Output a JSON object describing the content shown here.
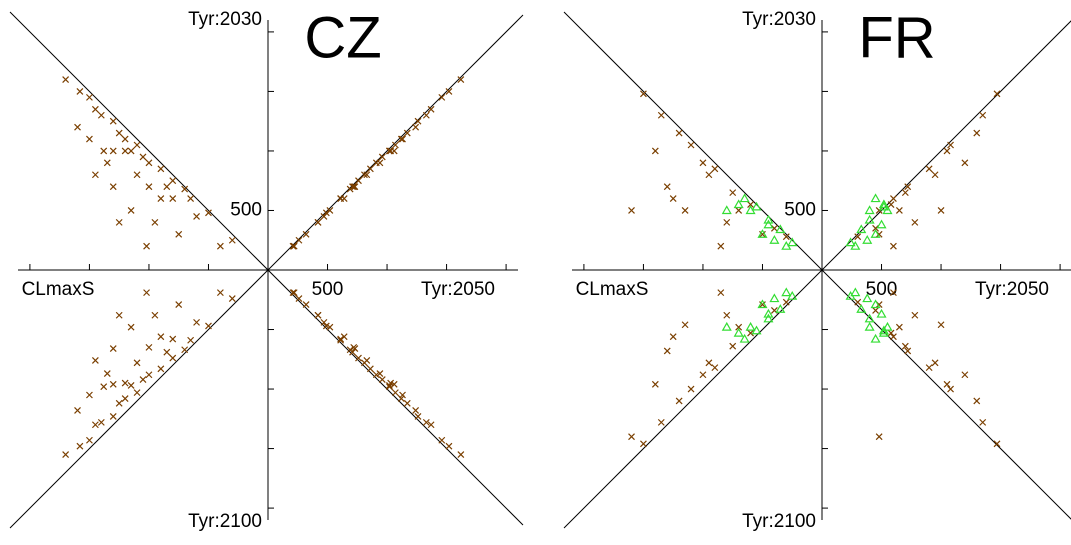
{
  "chart_data": [
    {
      "type": "scatter",
      "title": "CZ",
      "axes": [
        {
          "label": "CLmaxS",
          "dir": "left",
          "lim": [
            0,
            2100
          ],
          "ticks": [
            500,
            1000,
            1500,
            2000
          ],
          "tick_labels": []
        },
        {
          "label": "Tyr:2030",
          "dir": "up",
          "lim": [
            0,
            2100
          ],
          "ticks": [
            500,
            1000,
            1500,
            2000
          ],
          "tick_labels": [
            500
          ]
        },
        {
          "label": "Tyr:2050",
          "dir": "right",
          "lim": [
            0,
            2100
          ],
          "ticks": [
            500,
            1000,
            1500,
            2000
          ],
          "tick_labels": [
            500
          ]
        },
        {
          "label": "Tyr:2100",
          "dir": "down",
          "lim": [
            0,
            2100
          ],
          "ticks": [
            500,
            1000,
            1500,
            2000
          ],
          "tick_labels": []
        }
      ],
      "series": [
        {
          "color": "#7a3f00",
          "marker": "x",
          "sites": [
            [
              1580,
              1500,
              1520,
              1480
            ],
            [
              1400,
              1300,
              1330,
              1280
            ],
            [
              1500,
              1100,
              1130,
              1050
            ],
            [
              1300,
              1250,
              1260,
              1230
            ],
            [
              1200,
              1000,
              1030,
              950
            ],
            [
              1100,
              1050,
              1070,
              1030
            ],
            [
              1000,
              700,
              720,
              650
            ],
            [
              900,
              850,
              860,
              830
            ],
            [
              1350,
              900,
              940,
              870
            ],
            [
              1250,
              1150,
              1170,
              1120
            ],
            [
              800,
              600,
              610,
              580
            ],
            [
              1450,
              800,
              830,
              760
            ],
            [
              700,
              680,
              690,
              670
            ],
            [
              1150,
              500,
              520,
              480
            ],
            [
              950,
              400,
              420,
              380
            ],
            [
              1050,
              950,
              960,
              920
            ],
            [
              600,
              450,
              470,
              440
            ],
            [
              1600,
              1200,
              1240,
              1180
            ],
            [
              850,
              700,
              710,
              690
            ],
            [
              1380,
              1000,
              1020,
              980
            ],
            [
              500,
              480,
              490,
              470
            ],
            [
              750,
              300,
              320,
              290
            ],
            [
              1200,
              1100,
              1120,
              1080
            ],
            [
              1000,
              900,
              910,
              880
            ],
            [
              1300,
              700,
              730,
              660
            ],
            [
              650,
              600,
              610,
              590
            ],
            [
              1100,
              800,
              810,
              780
            ],
            [
              400,
              200,
              210,
              190
            ],
            [
              1500,
              1450,
              1460,
              1430
            ],
            [
              1700,
              1600,
              1620,
              1550
            ],
            [
              900,
              600,
              640,
              560
            ],
            [
              1250,
              400,
              420,
              380
            ],
            [
              300,
              250,
              260,
              240
            ],
            [
              1150,
              1000,
              1020,
              970
            ],
            [
              1450,
              1350,
              1370,
              1300
            ],
            [
              800,
              750,
              760,
              740
            ],
            [
              1020,
              200,
              220,
              190
            ],
            [
              1300,
              1000,
              1060,
              960
            ]
          ]
        }
      ]
    },
    {
      "type": "scatter",
      "title": "FR",
      "axes": [
        {
          "label": "CLmaxS",
          "dir": "left",
          "lim": [
            0,
            2100
          ],
          "ticks": [
            500,
            1000,
            1500,
            2000
          ],
          "tick_labels": []
        },
        {
          "label": "Tyr:2030",
          "dir": "up",
          "lim": [
            0,
            2100
          ],
          "ticks": [
            500,
            1000,
            1500,
            2000
          ],
          "tick_labels": [
            500
          ]
        },
        {
          "label": "Tyr:2050",
          "dir": "right",
          "lim": [
            0,
            2100
          ],
          "ticks": [
            500,
            1000,
            1500,
            2000
          ],
          "tick_labels": [
            500
          ]
        },
        {
          "label": "Tyr:2100",
          "dir": "down",
          "lim": [
            0,
            2100
          ],
          "ticks": [
            500,
            1000,
            1500,
            2000
          ],
          "tick_labels": []
        }
      ],
      "series": [
        {
          "color": "#7a3f00",
          "marker": "x",
          "sites": [
            [
              1500,
              1480,
              1470,
              1460
            ],
            [
              1200,
              1150,
              1300,
              1100
            ],
            [
              1300,
              700,
              720,
              680
            ],
            [
              900,
              850,
              900,
              820
            ],
            [
              1100,
              1050,
              1080,
              1000
            ],
            [
              700,
              500,
              650,
              480
            ],
            [
              800,
              400,
              780,
              380
            ],
            [
              1250,
              600,
              600,
              560
            ],
            [
              600,
              550,
              580,
              530
            ],
            [
              1000,
              900,
              1200,
              880
            ],
            [
              400,
              350,
              450,
              340
            ],
            [
              1600,
              500,
              480,
              1400
            ],
            [
              300,
              280,
              300,
              270
            ],
            [
              950,
              800,
              950,
              780
            ],
            [
              1150,
              500,
              1000,
              460
            ],
            [
              500,
              300,
              480,
              290
            ],
            [
              750,
              650,
              700,
              640
            ],
            [
              1400,
              1000,
              1050,
              960
            ],
            [
              850,
              200,
              600,
              190
            ],
            [
              1350,
              1300,
              1350,
              1280
            ]
          ]
        },
        {
          "color": "#33dd33",
          "marker": "triangle",
          "sites": [
            [
              450,
              420,
              400,
              410
            ],
            [
              600,
              500,
              550,
              480
            ],
            [
              350,
              340,
              330,
              330
            ],
            [
              500,
              300,
              450,
              290
            ],
            [
              550,
              530,
              520,
              510
            ],
            [
              400,
              250,
              380,
              240
            ],
            [
              700,
              550,
              520,
              530
            ],
            [
              300,
              200,
              280,
              190
            ],
            [
              650,
              600,
              450,
              580
            ],
            [
              450,
              380,
              500,
              370
            ],
            [
              800,
              500,
              400,
              480
            ],
            [
              250,
              230,
              240,
              220
            ]
          ]
        }
      ]
    }
  ]
}
